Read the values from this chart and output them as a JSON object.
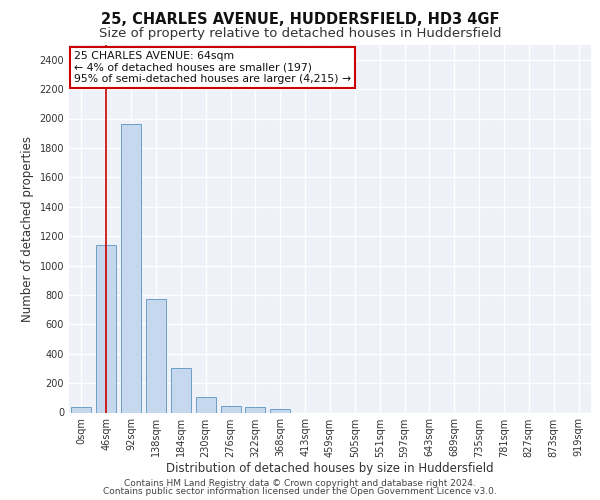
{
  "title_line1": "25, CHARLES AVENUE, HUDDERSFIELD, HD3 4GF",
  "title_line2": "Size of property relative to detached houses in Huddersfield",
  "xlabel": "Distribution of detached houses by size in Huddersfield",
  "ylabel": "Number of detached properties",
  "bar_labels": [
    "0sqm",
    "46sqm",
    "92sqm",
    "138sqm",
    "184sqm",
    "230sqm",
    "276sqm",
    "322sqm",
    "368sqm",
    "413sqm",
    "459sqm",
    "505sqm",
    "551sqm",
    "597sqm",
    "643sqm",
    "689sqm",
    "735sqm",
    "781sqm",
    "827sqm",
    "873sqm",
    "919sqm"
  ],
  "bar_values": [
    35,
    1140,
    1960,
    770,
    300,
    105,
    45,
    35,
    25,
    0,
    0,
    0,
    0,
    0,
    0,
    0,
    0,
    0,
    0,
    0,
    0
  ],
  "bar_color": "#c5d8ee",
  "bar_edge_color": "#6b9ec7",
  "bar_width": 0.8,
  "ylim": [
    0,
    2500
  ],
  "yticks": [
    0,
    200,
    400,
    600,
    800,
    1000,
    1200,
    1400,
    1600,
    1800,
    2000,
    2200,
    2400
  ],
  "red_line_x": 1,
  "annotation_text": "25 CHARLES AVENUE: 64sqm\n← 4% of detached houses are smaller (197)\n95% of semi-detached houses are larger (4,215) →",
  "annotation_box_color": "#ffffff",
  "annotation_box_edge": "#cc0000",
  "footer_line1": "Contains HM Land Registry data © Crown copyright and database right 2024.",
  "footer_line2": "Contains public sector information licensed under the Open Government Licence v3.0.",
  "background_color": "#eef2f8",
  "grid_color": "#ffffff",
  "title_fontsize": 10.5,
  "subtitle_fontsize": 9.5,
  "axis_label_fontsize": 8.5,
  "tick_fontsize": 7,
  "footer_fontsize": 6.5,
  "annotation_fontsize": 7.8
}
